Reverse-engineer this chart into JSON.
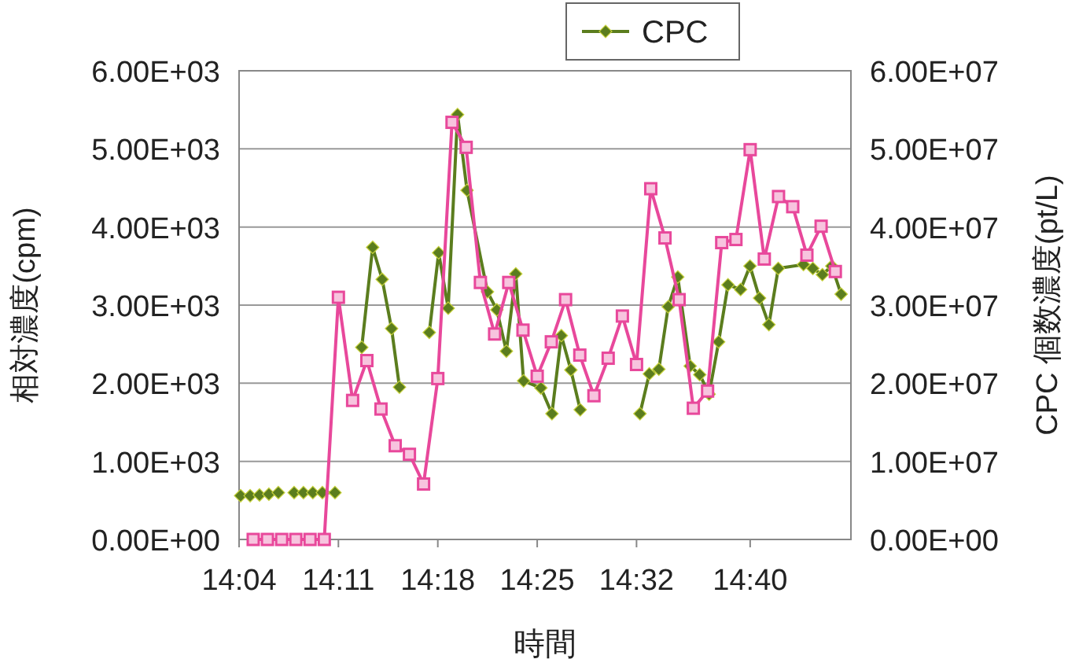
{
  "chart_data": {
    "type": "line",
    "xlabel": "時間",
    "ylabel": "相対濃度(cpm)",
    "y2label": "CPC 個数濃度(pt/L)",
    "xlim": [
      14.0667,
      14.785
    ],
    "xticks": [
      {
        "value": 14.0667,
        "label": "14:04"
      },
      {
        "value": 14.1833,
        "label": "14:11"
      },
      {
        "value": 14.3,
        "label": "14:18"
      },
      {
        "value": 14.4167,
        "label": "14:25"
      },
      {
        "value": 14.5333,
        "label": "14:32"
      },
      {
        "value": 14.6667,
        "label": "14:40"
      }
    ],
    "ylim": [
      0,
      6000
    ],
    "yticks": [
      {
        "value": 0,
        "label": "0.00E+00"
      },
      {
        "value": 1000,
        "label": "1.00E+03"
      },
      {
        "value": 2000,
        "label": "2.00E+03"
      },
      {
        "value": 3000,
        "label": "3.00E+03"
      },
      {
        "value": 4000,
        "label": "4.00E+03"
      },
      {
        "value": 5000,
        "label": "5.00E+03"
      },
      {
        "value": 6000,
        "label": "6.00E+03"
      }
    ],
    "y2lim": [
      0,
      60000000
    ],
    "y2ticks": [
      {
        "value": 0,
        "label": "0.00E+00"
      },
      {
        "value": 10000000,
        "label": "1.00E+07"
      },
      {
        "value": 20000000,
        "label": "2.00E+07"
      },
      {
        "value": 30000000,
        "label": "3.00E+07"
      },
      {
        "value": 40000000,
        "label": "4.00E+07"
      },
      {
        "value": 50000000,
        "label": "5.00E+07"
      },
      {
        "value": 60000000,
        "label": "6.00E+07"
      }
    ],
    "grid": "y",
    "legend": "top",
    "line_style": "solid",
    "series": [
      {
        "color": "#e8489b",
        "marker": "square",
        "x": [
          14.0833,
          14.1,
          14.1167,
          14.1333,
          14.15,
          14.1667,
          14.1833,
          14.2,
          14.2167,
          14.2333,
          14.25,
          14.2667,
          14.2833,
          14.3,
          14.3167,
          14.3333,
          14.35,
          14.3667,
          14.3833,
          14.4,
          14.4167,
          14.4333,
          14.45,
          14.4667,
          14.4833,
          14.5,
          14.5167,
          14.5333,
          14.55,
          14.5667,
          14.5833,
          14.6,
          14.6167,
          14.6333,
          14.65,
          14.6667,
          14.6833,
          14.7,
          14.7167,
          14.7333,
          14.75,
          14.7667
        ],
        "values": [
          0,
          0,
          0,
          0,
          0,
          0,
          3100,
          1780,
          2290,
          1670,
          1200,
          1090,
          710,
          2060,
          5340,
          5020,
          3290,
          2630,
          3290,
          2680,
          2090,
          2530,
          3070,
          2360,
          1840,
          2320,
          2860,
          2240,
          4490,
          3860,
          3070,
          1680,
          1900,
          3800,
          3840,
          4990,
          3590,
          4390,
          4260,
          3640,
          4010,
          3430
        ]
      },
      {
        "name": "CPC",
        "color": "#5b7d1e",
        "marker": "diamond",
        "axis": "y2",
        "x": [
          14.0685,
          14.0797,
          14.0907,
          14.1017,
          14.1128,
          14.122,
          14.1313,
          14.1423,
          14.1533,
          14.1645,
          14.1793,
          14.195,
          14.2107,
          14.2235,
          14.2347,
          14.2457,
          14.255,
          14.272,
          14.29,
          14.301,
          14.3122,
          14.3232,
          14.3343,
          14.3583,
          14.3693,
          14.3805,
          14.3915,
          14.4007,
          14.421,
          14.434,
          14.445,
          14.4562,
          14.4672,
          14.502,
          14.5373,
          14.5483,
          14.5595,
          14.5705,
          14.5817,
          14.5963,
          14.6075,
          14.6185,
          14.6297,
          14.6407,
          14.6555,
          14.6665,
          14.6777,
          14.6887,
          14.6997,
          14.7293,
          14.7403,
          14.7515,
          14.7625,
          14.7735
        ],
        "values": [
          5600000,
          5600000,
          5700000,
          5800000,
          6000000,
          null,
          6000000,
          6000000,
          6000000,
          6000000,
          6000000,
          null,
          24600000,
          37400000,
          33300000,
          27000000,
          19500000,
          null,
          26500000,
          36700000,
          29600000,
          54400000,
          44700000,
          31700000,
          29400000,
          24100000,
          34000000,
          20300000,
          19400000,
          16100000,
          26100000,
          21700000,
          16600000,
          null,
          16100000,
          21200000,
          21800000,
          29800000,
          33600000,
          22200000,
          21100000,
          18600000,
          25300000,
          32600000,
          32000000,
          35000000,
          30900000,
          27500000,
          34700000,
          35200000,
          34700000,
          33900000,
          35000000,
          31400000
        ]
      }
    ]
  }
}
